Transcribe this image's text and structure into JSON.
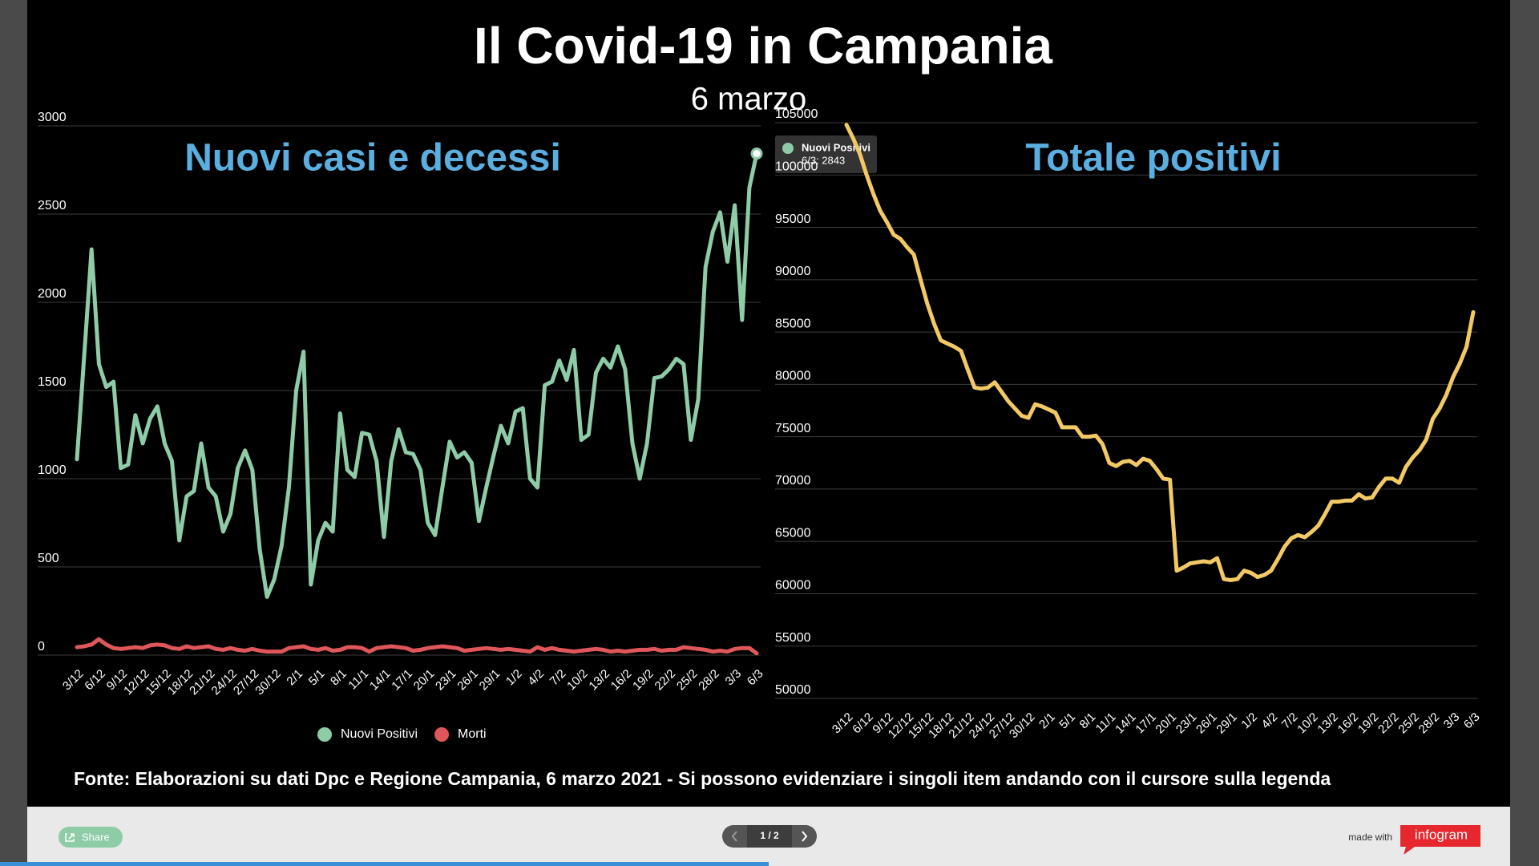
{
  "title": "Il Covid-19 in Campania",
  "subtitle": "6 marzo",
  "chart_data": [
    {
      "type": "line",
      "title": "Nuovi casi e decessi",
      "categories": [
        "3/12",
        null,
        null,
        "6/12",
        null,
        null,
        "9/12",
        null,
        null,
        "12/12",
        null,
        null,
        "15/12",
        null,
        null,
        "18/12",
        null,
        null,
        "21/12",
        null,
        null,
        "24/12",
        null,
        null,
        "27/12",
        null,
        null,
        "30/12",
        null,
        null,
        "2/1",
        null,
        null,
        "5/1",
        null,
        null,
        "8/1",
        null,
        null,
        "11/1",
        null,
        null,
        "14/1",
        null,
        null,
        "17/1",
        null,
        null,
        "20/1",
        null,
        null,
        "23/1",
        null,
        null,
        "26/1",
        null,
        null,
        "29/1",
        null,
        null,
        "1/2",
        null,
        null,
        "4/2",
        null,
        null,
        "7/2",
        null,
        null,
        "10/2",
        null,
        null,
        "13/2",
        null,
        null,
        "16/2",
        null,
        null,
        "19/2",
        null,
        null,
        "22/2",
        null,
        null,
        "25/2",
        null,
        null,
        "28/2",
        null,
        null,
        "3/3",
        null,
        null,
        "6/3"
      ],
      "series": [
        {
          "name": "Nuovi Positivi",
          "color": "#8ecba7",
          "values": [
            1110,
            1700,
            2300,
            1650,
            1520,
            1550,
            1060,
            1080,
            1360,
            1200,
            1340,
            1410,
            1200,
            1100,
            650,
            900,
            930,
            1200,
            950,
            900,
            700,
            800,
            1060,
            1160,
            1050,
            600,
            330,
            430,
            620,
            950,
            1500,
            1720,
            400,
            650,
            750,
            700,
            1370,
            1050,
            1010,
            1260,
            1250,
            1100,
            670,
            1100,
            1280,
            1150,
            1140,
            1050,
            750,
            680,
            950,
            1210,
            1120,
            1150,
            1090,
            760,
            950,
            1130,
            1300,
            1200,
            1380,
            1400,
            1000,
            950,
            1530,
            1550,
            1670,
            1560,
            1730,
            1220,
            1250,
            1600,
            1680,
            1630,
            1750,
            1620,
            1200,
            1000,
            1200,
            1570,
            1580,
            1620,
            1680,
            1650,
            1220,
            1450,
            2200,
            2400,
            2510,
            2230,
            2550,
            1900,
            2650,
            2843
          ]
        },
        {
          "name": "Morti",
          "color": "#e0575b",
          "values": [
            45,
            50,
            60,
            90,
            60,
            40,
            35,
            40,
            45,
            40,
            55,
            60,
            55,
            40,
            35,
            50,
            40,
            45,
            50,
            35,
            30,
            40,
            30,
            25,
            35,
            25,
            20,
            20,
            20,
            40,
            45,
            50,
            35,
            30,
            40,
            25,
            30,
            45,
            45,
            40,
            20,
            40,
            45,
            50,
            45,
            40,
            25,
            30,
            40,
            45,
            50,
            45,
            40,
            25,
            30,
            35,
            40,
            35,
            30,
            35,
            30,
            25,
            20,
            45,
            30,
            40,
            30,
            25,
            20,
            25,
            30,
            35,
            30,
            20,
            25,
            20,
            25,
            30,
            30,
            35,
            25,
            30,
            30,
            45,
            40,
            35,
            30,
            20,
            25,
            20,
            35,
            40,
            40,
            10
          ]
        }
      ],
      "ylim": [
        0,
        3000
      ],
      "yticks": [
        0,
        500,
        1000,
        1500,
        2000,
        2500,
        3000
      ],
      "grid": true,
      "legend": "bottom",
      "tooltip": {
        "text": "6/3: 2843"
      }
    },
    {
      "type": "line",
      "title": "Totale positivi",
      "categories": [
        "3/12",
        null,
        null,
        "6/12",
        null,
        null,
        "9/12",
        null,
        null,
        "12/12",
        null,
        null,
        "15/12",
        null,
        null,
        "18/12",
        null,
        null,
        "21/12",
        null,
        null,
        "24/12",
        null,
        null,
        "27/12",
        null,
        null,
        "30/12",
        null,
        null,
        "2/1",
        null,
        null,
        "5/1",
        null,
        null,
        "8/1",
        null,
        null,
        "11/1",
        null,
        null,
        "14/1",
        null,
        null,
        "17/1",
        null,
        null,
        "20/1",
        null,
        null,
        "23/1",
        null,
        null,
        "26/1",
        null,
        null,
        "29/1",
        null,
        null,
        "1/2",
        null,
        null,
        "4/2",
        null,
        null,
        "7/2",
        null,
        null,
        "10/2",
        null,
        null,
        "13/2",
        null,
        null,
        "16/2",
        null,
        null,
        "19/2",
        null,
        null,
        "22/2",
        null,
        null,
        "25/2",
        null,
        null,
        "28/2",
        null,
        null,
        "3/3",
        null,
        null,
        "6/3"
      ],
      "series": [
        {
          "color": "#f2c964",
          "values": [
            104800,
            103500,
            102000,
            100000,
            98200,
            96600,
            95500,
            94300,
            93900,
            93100,
            92400,
            90000,
            87700,
            85800,
            84200,
            83900,
            83600,
            83200,
            81400,
            79700,
            79600,
            79700,
            80200,
            79300,
            78400,
            77700,
            77000,
            76800,
            78100,
            77900,
            77600,
            77300,
            75900,
            75900,
            75900,
            75000,
            75000,
            75100,
            74300,
            72500,
            72200,
            72600,
            72700,
            72300,
            72900,
            72700,
            71900,
            71000,
            70900,
            62200,
            62500,
            62900,
            63000,
            63100,
            63000,
            63400,
            61400,
            61300,
            61400,
            62200,
            62000,
            61600,
            61800,
            62200,
            63300,
            64500,
            65300,
            65600,
            65400,
            65900,
            66500,
            67600,
            68800,
            68800,
            68900,
            68900,
            69500,
            69100,
            69200,
            70200,
            71000,
            71000,
            70600,
            72100,
            73000,
            73700,
            74700,
            76700,
            77700,
            79000,
            80700,
            82000,
            83600,
            86900
          ]
        }
      ],
      "ylim": [
        50000,
        105000
      ],
      "yticks": [
        50000,
        55000,
        60000,
        65000,
        70000,
        75000,
        80000,
        85000,
        90000,
        95000,
        100000,
        105000
      ],
      "grid": true
    }
  ],
  "source": "Fonte: Elaborazioni su dati Dpc e Regione Campania, 6 marzo 2021 - Si possono evidenziare i singoli item andando con il cursore sulla legenda",
  "footer": {
    "share": "Share",
    "pager": "1 / 2",
    "made_with": "made with",
    "brand": "infogram"
  }
}
